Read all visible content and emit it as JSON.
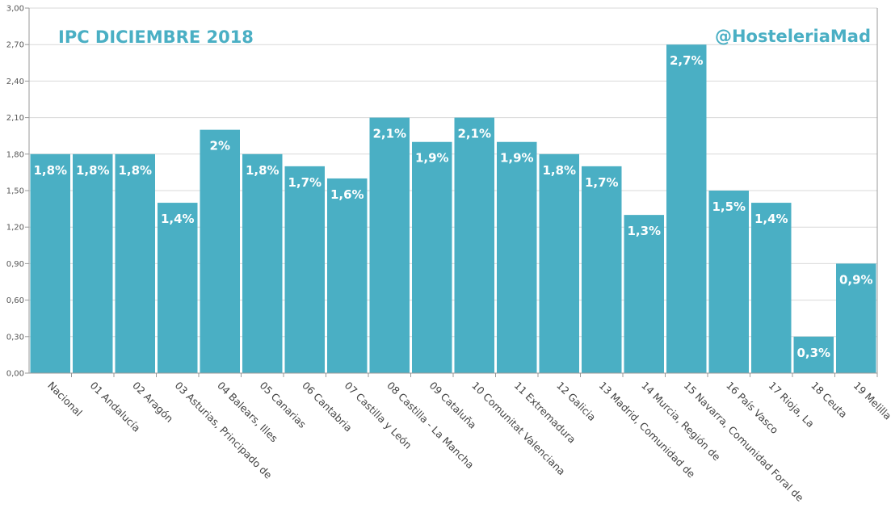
{
  "chart_data": {
    "type": "bar",
    "title": "IPC DICIEMBRE 2018",
    "watermark": "@HosteleriaMad",
    "categories": [
      "Nacional",
      "01 Andalucía",
      "02 Aragón",
      "03 Asturias, Principado de",
      "04 Balears, Illes",
      "05 Canarias",
      "06 Cantabria",
      "07 Castilla y León",
      "08 Castilla - La Mancha",
      "09 Cataluña",
      "10 Comunitat Valenciana",
      "11 Extremadura",
      "12 Galicia",
      "13 Madrid, Comunidad de",
      "14 Murcia, Región de",
      "15 Navarra, Comunidad Foral de",
      "16 País Vasco",
      "17 Rioja, La",
      "18 Ceuta",
      "19 Melilla"
    ],
    "values": [
      1.8,
      1.8,
      1.8,
      1.4,
      2.0,
      1.8,
      1.7,
      1.6,
      2.1,
      1.9,
      2.1,
      1.9,
      1.8,
      1.7,
      1.3,
      2.7,
      1.5,
      1.4,
      0.3,
      0.9
    ],
    "data_labels": [
      "1,8%",
      "1,8%",
      "1,8%",
      "1,4%",
      "2%",
      "1,8%",
      "1,7%",
      "1,6%",
      "2,1%",
      "1,9%",
      "2,1%",
      "1,9%",
      "1,8%",
      "1,7%",
      "1,3%",
      "2,7%",
      "1,5%",
      "1,4%",
      "0,3%",
      "0,9%"
    ],
    "y_ticks": [
      0,
      0.3,
      0.6,
      0.9,
      1.2,
      1.5,
      1.8,
      2.1,
      2.4,
      2.7,
      3.0
    ],
    "y_tick_labels": [
      "0,00",
      "0,30",
      "0,60",
      "0,90",
      "1,20",
      "1,50",
      "1,80",
      "2,10",
      "2,40",
      "2,70",
      "3,00"
    ],
    "ylim": [
      0,
      3.0
    ],
    "xlabel": "",
    "ylabel": "",
    "grid": true,
    "colors": {
      "bar": "#4aafc4",
      "title": "#4aafc4",
      "grid": "#d9d9d9",
      "axis": "#999999"
    }
  }
}
